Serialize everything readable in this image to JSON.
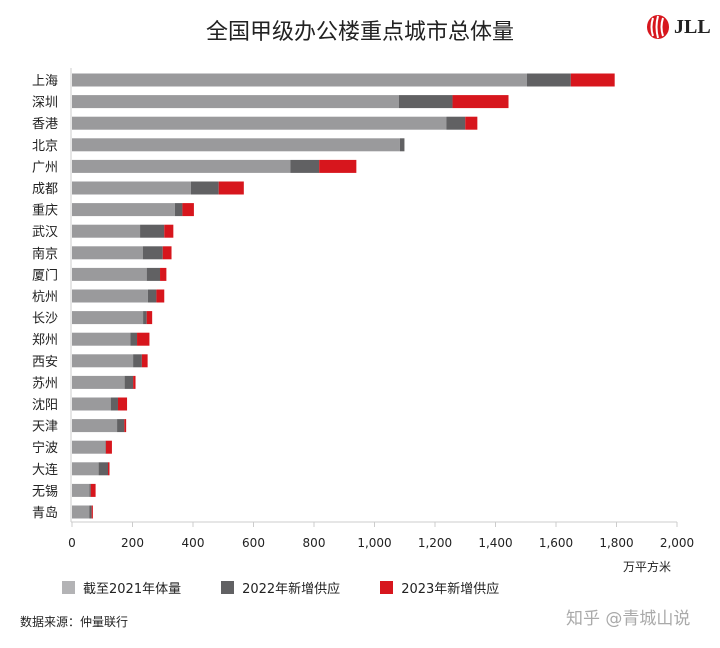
{
  "chart_data": {
    "type": "bar",
    "orientation": "horizontal",
    "stacked": true,
    "title": "全国甲级办公楼重点城市总体量",
    "unit_label": "万平方米",
    "categories": [
      "上海",
      "深圳",
      "香港",
      "北京",
      "广州",
      "成都",
      "重庆",
      "武汉",
      "南京",
      "厦门",
      "杭州",
      "长沙",
      "郑州",
      "西安",
      "苏州",
      "沈阳",
      "天津",
      "宁波",
      "大连",
      "无锡",
      "青岛"
    ],
    "series": [
      {
        "name": "截至2021年体量",
        "color": "#9a9a9c",
        "values": [
          1504,
          1081,
          1238,
          1084,
          722,
          393,
          340,
          225,
          234,
          247,
          251,
          235,
          193,
          202,
          174,
          128,
          149,
          110,
          88,
          58,
          57
        ]
      },
      {
        "name": "2022年新增供应",
        "color": "#616163",
        "values": [
          145,
          177,
          62,
          15,
          95,
          92,
          25,
          80,
          66,
          44,
          28,
          12,
          22,
          29,
          28,
          24,
          24,
          2,
          31,
          4,
          8
        ]
      },
      {
        "name": "2023年新增供应",
        "color": "#d7161d",
        "values": [
          145,
          185,
          40,
          0,
          123,
          83,
          38,
          30,
          29,
          21,
          26,
          18,
          41,
          19,
          8,
          30,
          6,
          20,
          5,
          16,
          4
        ]
      }
    ],
    "xlim": [
      0,
      2000
    ],
    "xticks": [
      "0",
      "200",
      "400",
      "600",
      "800",
      "1,000",
      "1,200",
      "1,400",
      "1,600",
      "1,800",
      "2,000"
    ],
    "grid": false,
    "legend_position": "bottom"
  },
  "logo_text": "JLL",
  "source": "数据来源：仲量联行",
  "watermark": "知乎 @青城山说"
}
